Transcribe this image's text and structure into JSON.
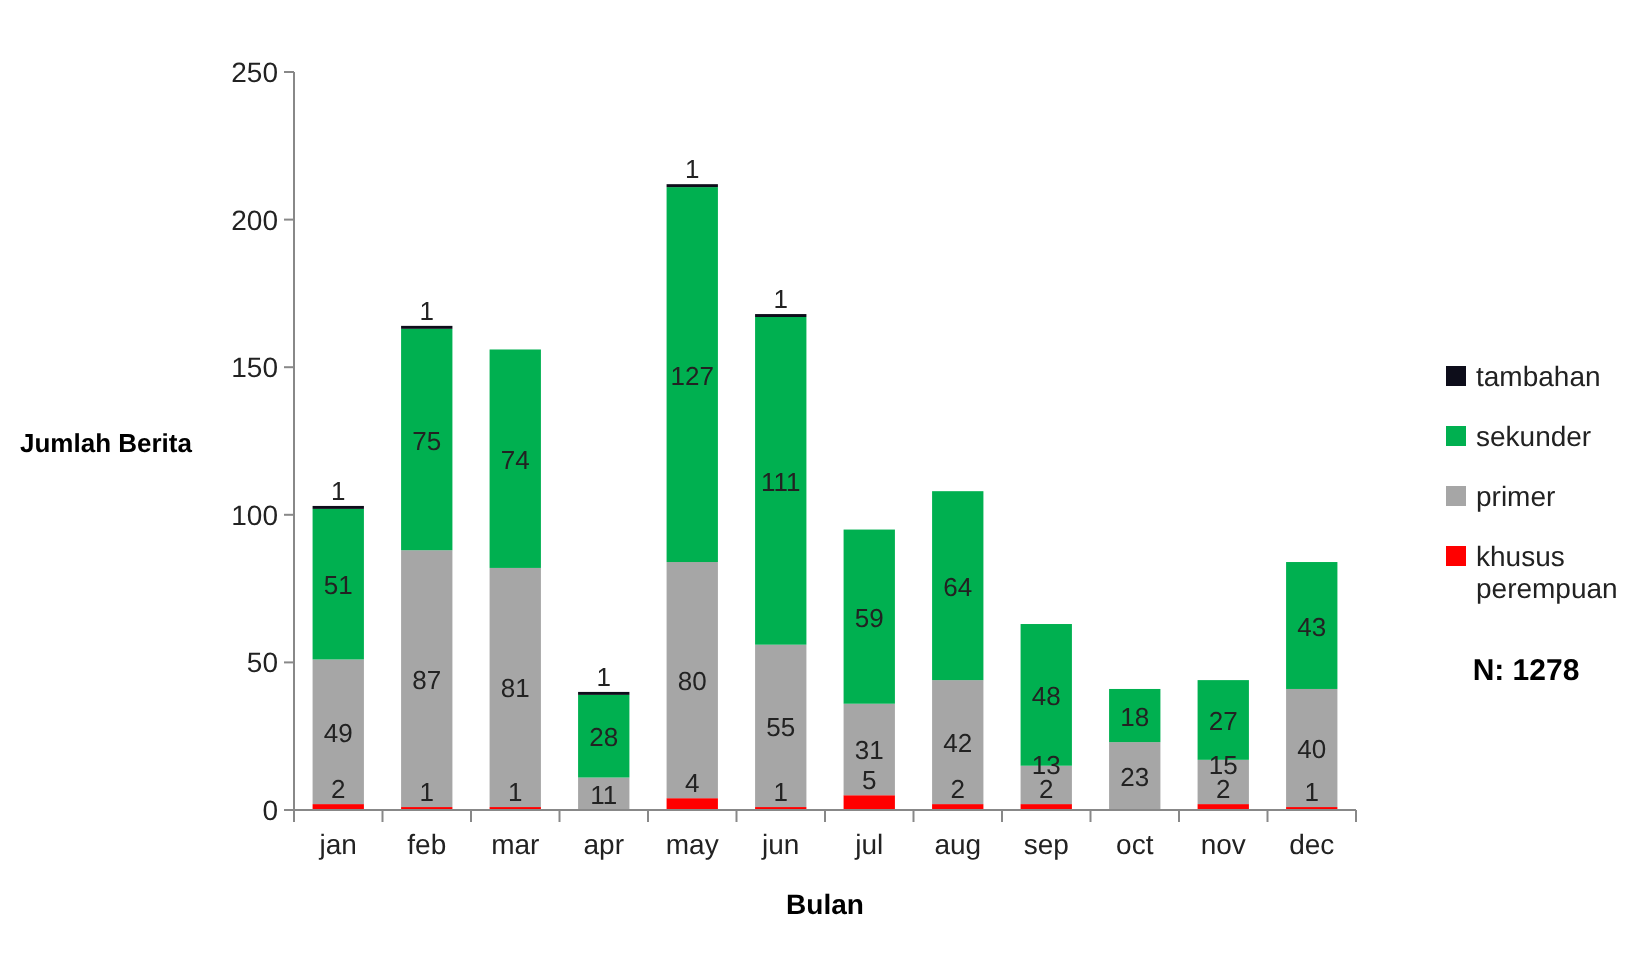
{
  "chart_data": {
    "type": "bar",
    "stacked": true,
    "xlabel": "Bulan",
    "ylabel": "Jumlah Berita",
    "categories": [
      "jan",
      "feb",
      "mar",
      "apr",
      "may",
      "jun",
      "jul",
      "aug",
      "sep",
      "oct",
      "nov",
      "dec"
    ],
    "series": [
      {
        "name": "khusus perempuan",
        "color": "#ff0000",
        "values": [
          2,
          1,
          1,
          null,
          4,
          1,
          5,
          2,
          2,
          null,
          2,
          1
        ],
        "value_labels": [
          "2",
          "1",
          "1",
          null,
          "4",
          "1",
          "5",
          "2",
          "2",
          null,
          "2",
          "1"
        ]
      },
      {
        "name": "primer",
        "color": "#a6a6a6",
        "values": [
          49,
          87,
          81,
          11,
          80,
          55,
          31,
          42,
          13,
          23,
          15,
          40
        ],
        "value_labels": [
          "49",
          "87",
          "81",
          "11",
          "80",
          "55",
          "31",
          "42",
          "13",
          "23",
          "15",
          "40"
        ]
      },
      {
        "name": "sekunder",
        "color": "#00b050",
        "values": [
          51,
          75,
          74,
          28,
          127,
          111,
          59,
          64,
          48,
          18,
          27,
          43
        ],
        "value_labels": [
          "51",
          "75",
          "74",
          "28",
          "127",
          "111",
          "59",
          "64",
          "48",
          "18",
          "27",
          "43"
        ]
      },
      {
        "name": "tambahan",
        "color": "#0d0d1a",
        "values": [
          1,
          1,
          null,
          1,
          1,
          1,
          null,
          null,
          null,
          null,
          null,
          null
        ],
        "value_labels": [
          "1",
          "1",
          null,
          "1",
          "1",
          "1",
          null,
          null,
          null,
          null,
          null,
          null
        ]
      }
    ],
    "ylim": [
      0,
      250
    ],
    "yticks": [
      0,
      50,
      100,
      150,
      200,
      250
    ],
    "grid": false,
    "legend": "right",
    "annotations": [
      "N: 1278"
    ]
  }
}
